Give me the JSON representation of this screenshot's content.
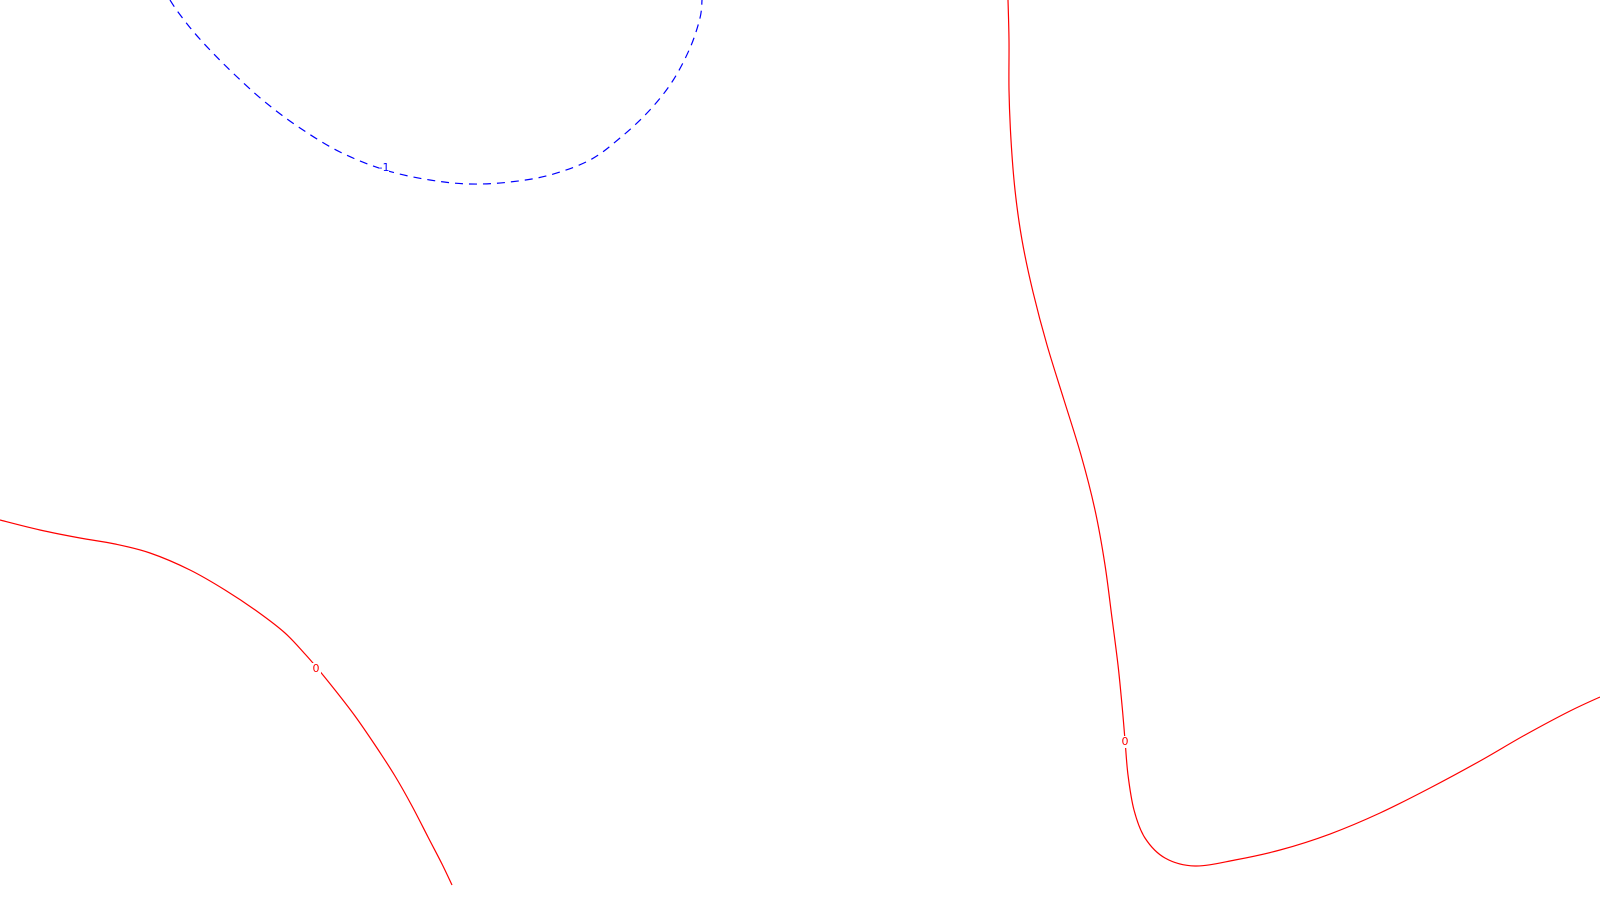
{
  "chart_data": {
    "type": "contour",
    "title": "",
    "xlabel": "",
    "ylabel": "",
    "grid": false,
    "levels": [
      {
        "level": "-1",
        "label": "-1",
        "color": "#0000ff",
        "dashed": true,
        "segments": [
          {
            "points": [
              [
                170,
                0
              ],
              [
                178,
                12
              ],
              [
                192,
                30
              ],
              [
                210,
                50
              ],
              [
                235,
                75
              ],
              [
                265,
                102
              ],
              [
                300,
                128
              ],
              [
                340,
                152
              ],
              [
                385,
                170
              ],
              [
                430,
                180
              ],
              [
                470,
                184
              ],
              [
                510,
                182
              ],
              [
                550,
                175
              ],
              [
                590,
                160
              ],
              [
                620,
                138
              ],
              [
                648,
                112
              ],
              [
                672,
                82
              ],
              [
                690,
                48
              ],
              [
                700,
                18
              ],
              [
                702,
                0
              ]
            ],
            "label_at": [
              384,
              168
            ]
          }
        ]
      },
      {
        "level": "0",
        "label": "0",
        "color": "#ff0000",
        "dashed": false,
        "segments": [
          {
            "points": [
              [
                0,
                520
              ],
              [
                40,
                530
              ],
              [
                80,
                538
              ],
              [
                115,
                544
              ],
              [
                150,
                553
              ],
              [
                190,
                570
              ],
              [
                225,
                590
              ],
              [
                258,
                612
              ],
              [
                285,
                633
              ],
              [
                305,
                654
              ],
              [
                318,
                669
              ],
              [
                335,
                690
              ],
              [
                355,
                716
              ],
              [
                375,
                745
              ],
              [
                395,
                776
              ],
              [
                412,
                806
              ],
              [
                428,
                837
              ],
              [
                442,
                864
              ],
              [
                452,
                885
              ]
            ],
            "label_at": [
              316,
              669
            ]
          },
          {
            "points": [
              [
                1008,
                0
              ],
              [
                1009,
                40
              ],
              [
                1009,
                90
              ],
              [
                1011,
                140
              ],
              [
                1015,
                190
              ],
              [
                1022,
                240
              ],
              [
                1033,
                292
              ],
              [
                1047,
                345
              ],
              [
                1064,
                400
              ],
              [
                1081,
                455
              ],
              [
                1095,
                510
              ],
              [
                1105,
                565
              ],
              [
                1112,
                618
              ],
              [
                1118,
                665
              ],
              [
                1122,
                705
              ],
              [
                1125,
                740
              ],
              [
                1128,
                775
              ],
              [
                1134,
                810
              ],
              [
                1145,
                838
              ],
              [
                1165,
                858
              ],
              [
                1195,
                866
              ],
              [
                1235,
                860
              ],
              [
                1280,
                850
              ],
              [
                1330,
                834
              ],
              [
                1380,
                813
              ],
              [
                1430,
                788
              ],
              [
                1480,
                761
              ],
              [
                1525,
                735
              ],
              [
                1570,
                711
              ],
              [
                1600,
                697
              ]
            ],
            "label_at": [
              1125,
              742
            ]
          }
        ]
      }
    ]
  }
}
